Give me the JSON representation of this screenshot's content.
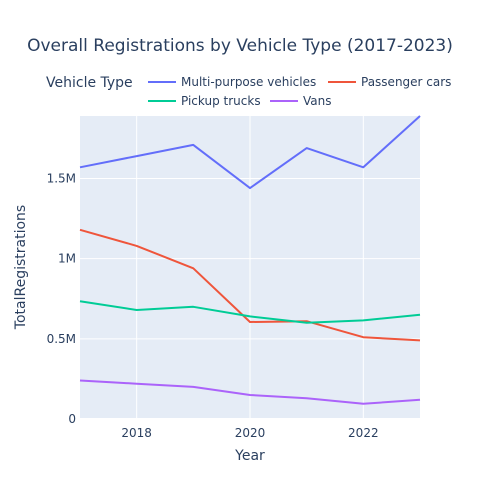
{
  "chart_data": {
    "type": "line",
    "title": "Overall Registrations by Vehicle Type (2017-2023)",
    "xlabel": "Year",
    "ylabel": "TotalRegistrations",
    "legend_title": "Vehicle Type",
    "legend_position": "top",
    "grid": true,
    "x": [
      2017,
      2018,
      2019,
      2020,
      2021,
      2022,
      2023
    ],
    "xlim": [
      2017,
      2023
    ],
    "ylim": [
      0,
      1890000
    ],
    "x_ticks": [
      {
        "value": 2018,
        "label": "2018"
      },
      {
        "value": 2020,
        "label": "2020"
      },
      {
        "value": 2022,
        "label": "2022"
      }
    ],
    "y_ticks": [
      {
        "value": 0,
        "label": "0"
      },
      {
        "value": 500000,
        "label": "0.5M"
      },
      {
        "value": 1000000,
        "label": "1M"
      },
      {
        "value": 1500000,
        "label": "1.5M"
      }
    ],
    "series": [
      {
        "name": "Multi-purpose vehicles",
        "color": "#636efa",
        "values": [
          1570000,
          1640000,
          1710000,
          1440000,
          1690000,
          1570000,
          1890000
        ]
      },
      {
        "name": "Passenger cars",
        "color": "#ef553b",
        "values": [
          1180000,
          1080000,
          940000,
          605000,
          610000,
          510000,
          490000
        ]
      },
      {
        "name": "Pickup trucks",
        "color": "#00cc96",
        "values": [
          735000,
          680000,
          700000,
          640000,
          600000,
          615000,
          650000
        ]
      },
      {
        "name": "Vans",
        "color": "#ab63fa",
        "values": [
          240000,
          220000,
          200000,
          150000,
          130000,
          95000,
          120000
        ]
      }
    ]
  }
}
